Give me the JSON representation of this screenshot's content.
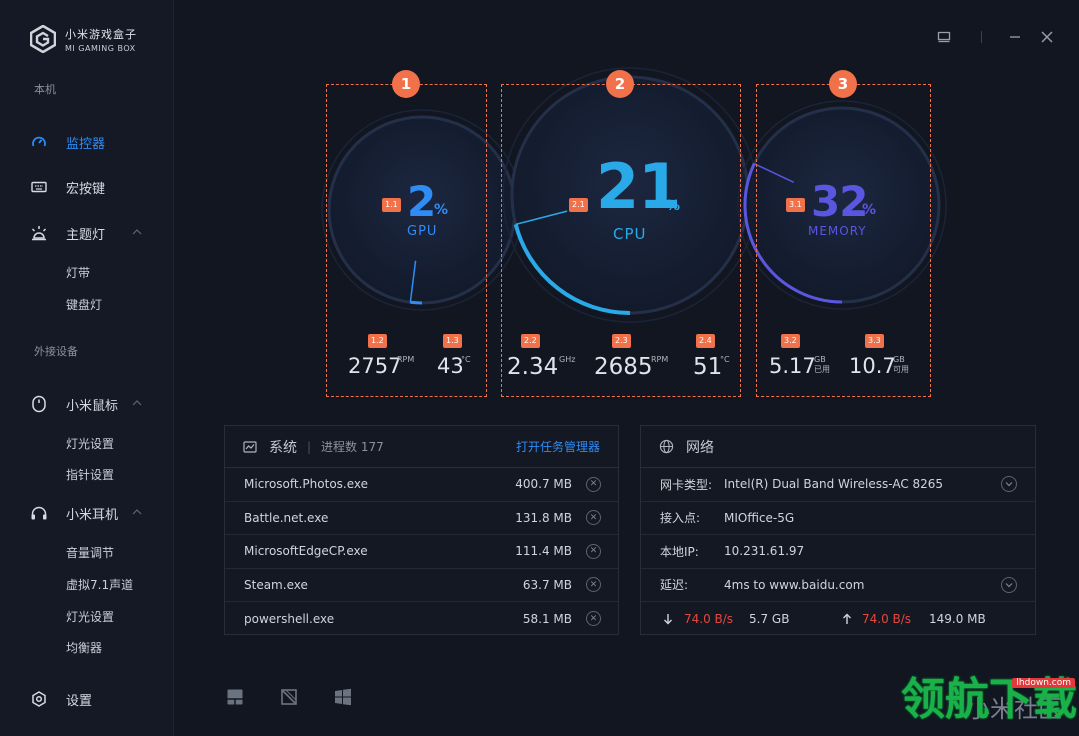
{
  "app": {
    "name_cn": "小米游戏盒子",
    "name_en": "MI GAMING BOX"
  },
  "sidebar": {
    "section_local": "本机",
    "section_external": "外接设备",
    "items": {
      "monitor": "监控器",
      "macro": "宏按键",
      "theme_light": "主题灯",
      "light_strip": "灯带",
      "keyboard_light": "键盘灯",
      "mouse": "小米鼠标",
      "mouse_light": "灯光设置",
      "mouse_pointer": "指针设置",
      "headset": "小米耳机",
      "volume": "音量调节",
      "virtual71": "虚拟7.1声道",
      "headset_light": "灯光设置",
      "equalizer": "均衡器",
      "settings": "设置"
    }
  },
  "gauges": {
    "gpu": {
      "badge": "1",
      "tag": "1.1",
      "value": "2",
      "unit": "%",
      "label": "GPU",
      "percent": 2,
      "color": "#2f8cf5",
      "stat1": {
        "tag": "1.2",
        "value": "2757",
        "unit": "RPM"
      },
      "stat2": {
        "tag": "1.3",
        "value": "43",
        "unit": "°C"
      }
    },
    "cpu": {
      "badge": "2",
      "tag": "2.1",
      "value": "21",
      "unit": "%",
      "label": "CPU",
      "percent": 21,
      "color": "#2aa9e8",
      "stat1": {
        "tag": "2.2",
        "value": "2.34",
        "unit": "GHz"
      },
      "stat2": {
        "tag": "2.3",
        "value": "2685",
        "unit": "RPM"
      },
      "stat3": {
        "tag": "2.4",
        "value": "51",
        "unit": "°C"
      }
    },
    "memory": {
      "badge": "3",
      "tag": "3.1",
      "value": "32",
      "unit": "%",
      "label": "MEMORY",
      "percent": 32,
      "color": "#5a56e0",
      "stat1": {
        "tag": "3.2",
        "value": "5.17",
        "unit": "GB",
        "sub": "已用"
      },
      "stat2": {
        "tag": "3.3",
        "value": "10.7",
        "unit": "GB",
        "sub": "可用"
      }
    }
  },
  "system": {
    "title": "系统",
    "proc_label": "进程数 177",
    "open_tm": "打开任务管理器",
    "processes": [
      {
        "name": "Microsoft.Photos.exe",
        "mem": "400.7 MB"
      },
      {
        "name": "Battle.net.exe",
        "mem": "131.8 MB"
      },
      {
        "name": "MicrosoftEdgeCP.exe",
        "mem": "111.4 MB"
      },
      {
        "name": "Steam.exe",
        "mem": "63.7 MB"
      },
      {
        "name": "powershell.exe",
        "mem": "58.1 MB"
      }
    ]
  },
  "network": {
    "title": "网络",
    "adapter_label": "网卡类型:",
    "adapter": "Intel(R) Dual Band Wireless-AC 8265",
    "ap_label": "接入点:",
    "ap": "MIOffice-5G",
    "ip_label": "本地IP:",
    "ip": "10.231.61.97",
    "latency_label": "延迟:",
    "latency": "4ms to www.baidu.com",
    "down_speed": "74.0 B/s",
    "down_total": "5.7 GB",
    "up_speed": "74.0 B/s",
    "up_total": "149.0 MB"
  },
  "watermark": {
    "main": "领航下载",
    "url": "lhdown.com",
    "behind": "小米社区"
  }
}
